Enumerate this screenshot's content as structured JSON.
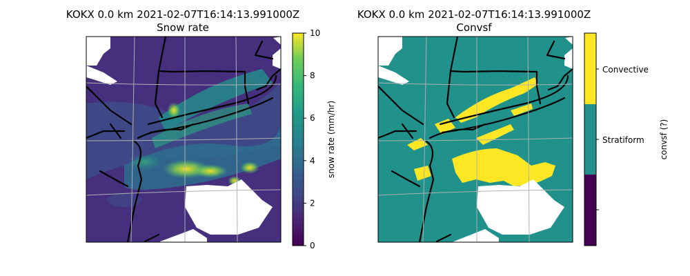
{
  "colors": {
    "viridis_dark": "#440154",
    "viridis_mid": "#21918c",
    "viridis_yellow": "#fde725",
    "boundary": "#000000",
    "gridline": "#b0b0b0",
    "missing": "#ffffff"
  },
  "chart_data": [
    {
      "type": "heatmap",
      "title": "KOKX 0.0 km 2021-02-07T16:14:13.991000Z",
      "subtitle": "Snow rate",
      "colorbar": {
        "label": "snow rate (mm/hr)",
        "range": [
          0,
          10
        ],
        "ticks": [
          "0",
          "2",
          "4",
          "6",
          "8",
          "10"
        ],
        "colormap": "viridis"
      },
      "grid": true,
      "features": [
        "coastlines",
        "state borders"
      ],
      "missing_data_color": "white"
    },
    {
      "type": "heatmap",
      "title": "KOKX 0.0 km 2021-02-07T16:14:13.991000Z",
      "subtitle": "Convsf",
      "colorbar": {
        "label": "convsf (?)",
        "categories": [
          "",
          "Stratiform",
          "Convective"
        ],
        "colors": [
          "#440154",
          "#21918c",
          "#fde725"
        ]
      },
      "grid": true,
      "features": [
        "coastlines",
        "state borders"
      ],
      "missing_data_color": "white"
    }
  ]
}
